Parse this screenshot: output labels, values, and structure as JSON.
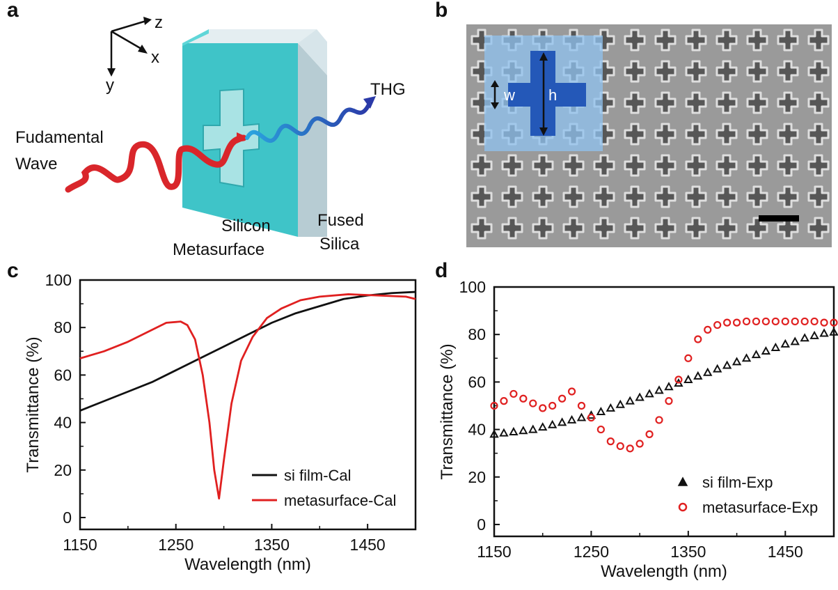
{
  "panels": {
    "a": {
      "letter": "a",
      "axes": {
        "z": "z",
        "x": "x",
        "y": "y"
      },
      "labels": {
        "fundamental_line1": "Fudamental",
        "fundamental_line2": "Wave",
        "thg": "THG",
        "silicon_line1": "Silicon",
        "silicon_line2": "Metasurface",
        "silica_line1": "Fused",
        "silica_line2": "Silica"
      },
      "colors": {
        "beam_in": "#d9262b",
        "beam_out": "#3b4fb5",
        "metasurface": "#3cc6c9",
        "silica": "#cfe0e6"
      }
    },
    "b": {
      "letter": "b",
      "labels": {
        "w": "w",
        "h": "h"
      },
      "colors": {
        "cross": "#2458b8",
        "overlay": "#8fc1ef"
      }
    },
    "c": {
      "letter": "c"
    },
    "d": {
      "letter": "d"
    }
  },
  "chart_data": [
    {
      "type": "line",
      "panel": "c",
      "xlabel": "Wavelength (nm)",
      "ylabel": "Transmittance (%)",
      "xlim": [
        1150,
        1500
      ],
      "ylim": [
        -5,
        100
      ],
      "xticks": [
        1150,
        1250,
        1350,
        1450
      ],
      "yticks": [
        0,
        20,
        40,
        60,
        80,
        100
      ],
      "legend_position": "bottom-right",
      "series": [
        {
          "name": "si film-Cal",
          "color": "#111111",
          "x": [
            1150,
            1175,
            1200,
            1225,
            1250,
            1275,
            1300,
            1325,
            1350,
            1375,
            1400,
            1425,
            1450,
            1475,
            1500
          ],
          "y": [
            45,
            49,
            53,
            57,
            62,
            67,
            72,
            77,
            82,
            86,
            89,
            92,
            93.5,
            94.5,
            95
          ]
        },
        {
          "name": "metasurface-Cal",
          "color": "#e02020",
          "x": [
            1150,
            1175,
            1200,
            1220,
            1240,
            1255,
            1262,
            1270,
            1278,
            1285,
            1290,
            1295,
            1300,
            1308,
            1318,
            1330,
            1345,
            1360,
            1380,
            1400,
            1430,
            1460,
            1490,
            1500
          ],
          "y": [
            67,
            70,
            74,
            78,
            82,
            82.5,
            81,
            75,
            60,
            40,
            20,
            8,
            24,
            48,
            66,
            76,
            84,
            88,
            91.5,
            93,
            94,
            93.5,
            93,
            92
          ]
        }
      ]
    },
    {
      "type": "scatter",
      "panel": "d",
      "xlabel": "Wavelength (nm)",
      "ylabel": "Transmittance (%)",
      "xlim": [
        1150,
        1500
      ],
      "ylim": [
        -5,
        100
      ],
      "xticks": [
        1150,
        1250,
        1350,
        1450
      ],
      "yticks": [
        0,
        20,
        40,
        60,
        80,
        100
      ],
      "legend_position": "bottom-right",
      "series": [
        {
          "name": "si film-Exp",
          "marker": "triangle",
          "color": "#111111",
          "x": [
            1150,
            1160,
            1170,
            1180,
            1190,
            1200,
            1210,
            1220,
            1230,
            1240,
            1250,
            1260,
            1270,
            1280,
            1290,
            1300,
            1310,
            1320,
            1330,
            1340,
            1350,
            1360,
            1370,
            1380,
            1390,
            1400,
            1410,
            1420,
            1430,
            1440,
            1450,
            1460,
            1470,
            1480,
            1490,
            1500
          ],
          "y": [
            38,
            38.5,
            39,
            39.5,
            40,
            41,
            42,
            43,
            44,
            45,
            46,
            47.5,
            49,
            50.5,
            52,
            53.5,
            55,
            56.5,
            58,
            59.5,
            61,
            62.5,
            64,
            65.5,
            67,
            68.5,
            70,
            71.5,
            73,
            74.5,
            76,
            77,
            78.5,
            79.5,
            80.5,
            81
          ]
        },
        {
          "name": "metasurface-Exp",
          "marker": "circle",
          "color": "#e02020",
          "x": [
            1150,
            1160,
            1170,
            1180,
            1190,
            1200,
            1210,
            1220,
            1230,
            1240,
            1250,
            1260,
            1270,
            1280,
            1290,
            1300,
            1310,
            1320,
            1330,
            1340,
            1350,
            1360,
            1370,
            1380,
            1390,
            1400,
            1410,
            1420,
            1430,
            1440,
            1450,
            1460,
            1470,
            1480,
            1490,
            1500
          ],
          "y": [
            50,
            52,
            55,
            53,
            51,
            49,
            50,
            53,
            56,
            50,
            45,
            40,
            35,
            33,
            32,
            34,
            38,
            44,
            52,
            61,
            70,
            78,
            82,
            84,
            85,
            85,
            85.5,
            85.5,
            85.5,
            85.5,
            85.5,
            85.5,
            85.5,
            85.5,
            85,
            85
          ]
        }
      ]
    }
  ]
}
